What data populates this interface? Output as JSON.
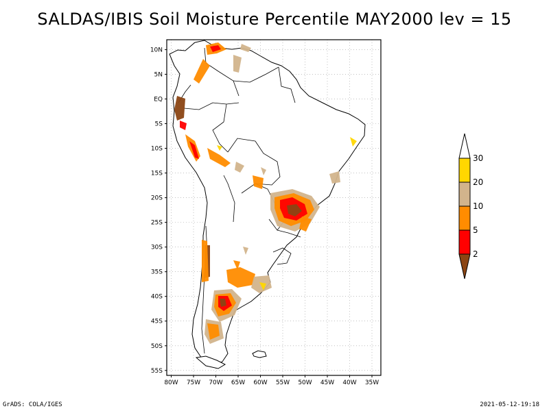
{
  "title": "SALDAS/IBIS Soil Moisture Percentile MAY2000 lev = 15",
  "footer": {
    "left": "GrADS: COLA/IGES",
    "right": "2021-05-12-19:18"
  },
  "map": {
    "region": "South America",
    "lon_range": [
      -81,
      -33
    ],
    "lat_range": [
      -56,
      12
    ],
    "grid": "dotted",
    "lat_labels": [
      {
        "lat": 10,
        "label": "10N"
      },
      {
        "lat": 5,
        "label": "5N"
      },
      {
        "lat": 0,
        "label": "EQ"
      },
      {
        "lat": -5,
        "label": "5S"
      },
      {
        "lat": -10,
        "label": "10S"
      },
      {
        "lat": -15,
        "label": "15S"
      },
      {
        "lat": -20,
        "label": "20S"
      },
      {
        "lat": -25,
        "label": "25S"
      },
      {
        "lat": -30,
        "label": "30S"
      },
      {
        "lat": -35,
        "label": "35S"
      },
      {
        "lat": -40,
        "label": "40S"
      },
      {
        "lat": -45,
        "label": "45S"
      },
      {
        "lat": -50,
        "label": "50S"
      },
      {
        "lat": -55,
        "label": "55S"
      }
    ],
    "lon_labels": [
      {
        "lon": -80,
        "label": "80W"
      },
      {
        "lon": -75,
        "label": "75W"
      },
      {
        "lon": -70,
        "label": "70W"
      },
      {
        "lon": -65,
        "label": "65W"
      },
      {
        "lon": -60,
        "label": "60W"
      },
      {
        "lon": -55,
        "label": "55W"
      },
      {
        "lon": -50,
        "label": "50W"
      },
      {
        "lon": -45,
        "label": "45W"
      },
      {
        "lon": -40,
        "label": "40W"
      },
      {
        "lon": -35,
        "label": "35W"
      }
    ]
  },
  "colorbar": {
    "levels": [
      "2",
      "5",
      "10",
      "20",
      "30"
    ],
    "colors": [
      "#8b4513",
      "#ff0000",
      "#ff8c00",
      "#d2b48c",
      "#ffd700",
      "#ffffff"
    ]
  }
}
